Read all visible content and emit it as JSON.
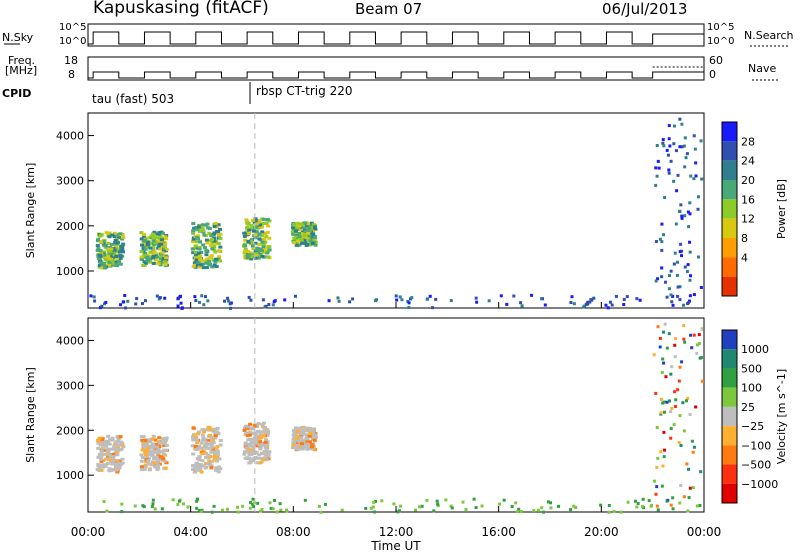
{
  "header": {
    "radar": "Kapuskasing (fitACF)",
    "beam": "Beam 07",
    "date": "06/Jul/2013"
  },
  "panels": {
    "nsky_label": "N.Sky",
    "nsky_ticks": [
      "10^5",
      "10^0"
    ],
    "nsearch_label": "N.Search",
    "freq_label_1": "Freq.",
    "freq_label_2": "[MHz]",
    "freq_ticks": [
      "18",
      "8"
    ],
    "nave_label": "Nave",
    "nave_ticks": [
      "60",
      "0"
    ],
    "cpid_label": "CPID",
    "cpid_entries": [
      "tau (fast) 503",
      "rbsp CT-trig 220"
    ]
  },
  "chart_data": [
    {
      "type": "heatmap",
      "name": "power",
      "ylabel": "Slant Range [km]",
      "colorbar_label": "Power [dB]",
      "colorbar_ticks": [
        "28",
        "24",
        "20",
        "16",
        "12",
        "8",
        "4"
      ],
      "colors": [
        "#1a1aff",
        "#3050b0",
        "#2f7f8f",
        "#48a878",
        "#8ccc28",
        "#d8c810",
        "#ff9e00",
        "#ff6a00",
        "#e53000"
      ],
      "yticks": [
        "4000",
        "3000",
        "2000",
        "1000"
      ],
      "ylim": [
        180,
        4500
      ]
    },
    {
      "type": "heatmap",
      "name": "velocity",
      "ylabel": "Slant Range [km]",
      "colorbar_label": "Velocity [m s^-1]",
      "colorbar_ticks": [
        "1000",
        "500",
        "100",
        "25",
        "−25",
        "−100",
        "−500",
        "−1000"
      ],
      "colors": [
        "#2040c0",
        "#208870",
        "#30a040",
        "#7cc83c",
        "#bebebe",
        "#ffb030",
        "#ff7a10",
        "#ff3010",
        "#e00000"
      ],
      "yticks": [
        "4000",
        "3000",
        "2000",
        "1000"
      ],
      "ylim": [
        180,
        4500
      ]
    }
  ],
  "time_axis": {
    "xlabel": "Time UT",
    "ticks": [
      "00:00",
      "04:00",
      "08:00",
      "12:00",
      "16:00",
      "20:00",
      "00:00"
    ],
    "xlim": [
      0,
      24
    ]
  }
}
